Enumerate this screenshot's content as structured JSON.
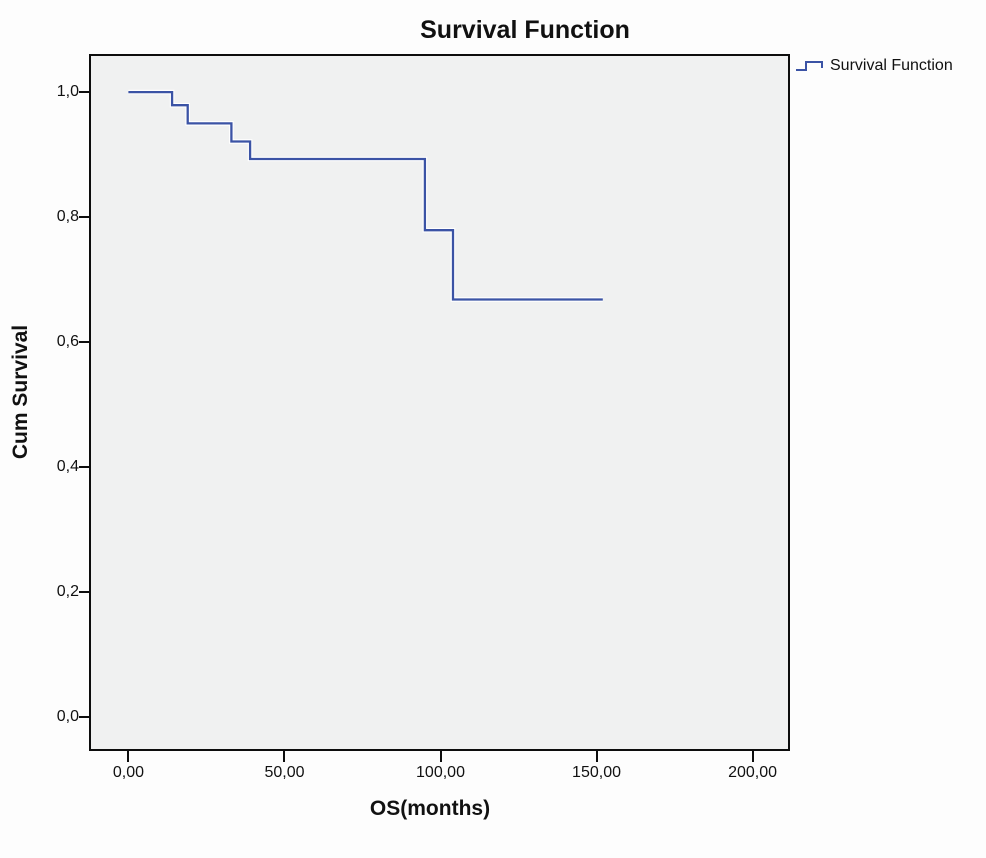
{
  "colors": {
    "line": "#3b53a5",
    "halo": "#ffffff",
    "plot_background": "#f0f1f1",
    "axis": "#0d0d0d",
    "text": "#111111",
    "page_background": "#fdfdfd"
  },
  "chart_data": {
    "type": "line",
    "subtype": "kaplan-meier-step",
    "title": "Survival Function",
    "xlabel": "OS(months)",
    "ylabel": "Cum Survival",
    "xlim": [
      -12,
      212
    ],
    "ylim": [
      -0.053,
      1.061
    ],
    "grid": false,
    "legend_position": "outside-top-right",
    "x_ticks": {
      "values": [
        0,
        50,
        100,
        150,
        200
      ],
      "labels": [
        "0,00",
        "50,00",
        "100,00",
        "150,00",
        "200,00"
      ]
    },
    "y_ticks": {
      "values": [
        0,
        0.2,
        0.4,
        0.6,
        0.8,
        1.0
      ],
      "labels": [
        "0,0",
        "0,2",
        "0,4",
        "0,6",
        "0,8",
        "1,0"
      ]
    },
    "series": [
      {
        "name": "Survival Function",
        "color": "#3b53a5",
        "step_points": [
          [
            0,
            1.0
          ],
          [
            14,
            1.0
          ],
          [
            14,
            0.979
          ],
          [
            19,
            0.979
          ],
          [
            19,
            0.95
          ],
          [
            33,
            0.95
          ],
          [
            33,
            0.921
          ],
          [
            39,
            0.921
          ],
          [
            39,
            0.893
          ],
          [
            95,
            0.893
          ],
          [
            95,
            0.779
          ],
          [
            104,
            0.779
          ],
          [
            104,
            0.668
          ],
          [
            152,
            0.668
          ]
        ]
      }
    ]
  }
}
